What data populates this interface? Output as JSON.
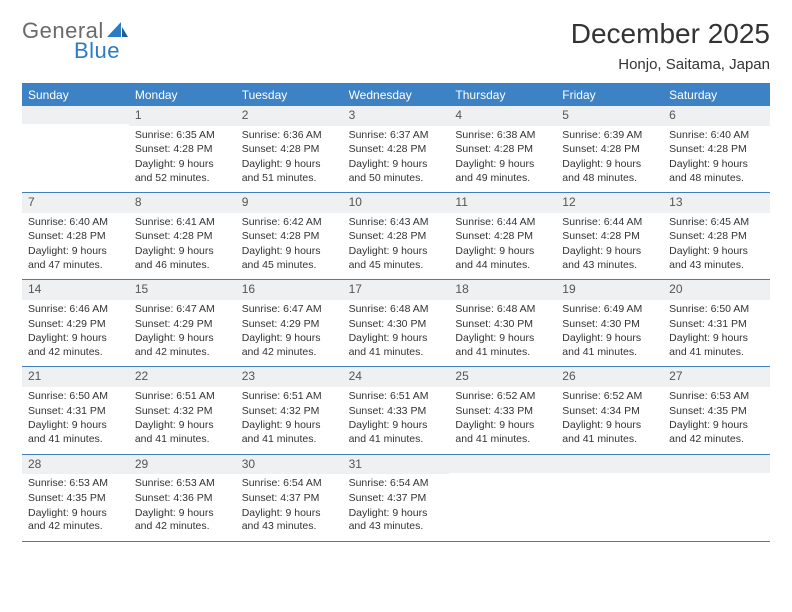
{
  "logo": {
    "text1": "General",
    "text2": "Blue"
  },
  "title": "December 2025",
  "subtitle": "Honjo, Saitama, Japan",
  "colors": {
    "header_bg": "#3d82c4",
    "header_text": "#ffffff",
    "rule": "#407fb7",
    "daynum_bg": "#eef0f1",
    "body_text": "#333333",
    "logo_gray": "#6a6a6a",
    "logo_blue": "#2a7dc2"
  },
  "day_names": [
    "Sunday",
    "Monday",
    "Tuesday",
    "Wednesday",
    "Thursday",
    "Friday",
    "Saturday"
  ],
  "weeks": [
    [
      {
        "day": "",
        "sunrise": "",
        "sunset": "",
        "daylight": ""
      },
      {
        "day": "1",
        "sunrise": "Sunrise: 6:35 AM",
        "sunset": "Sunset: 4:28 PM",
        "daylight": "Daylight: 9 hours and 52 minutes."
      },
      {
        "day": "2",
        "sunrise": "Sunrise: 6:36 AM",
        "sunset": "Sunset: 4:28 PM",
        "daylight": "Daylight: 9 hours and 51 minutes."
      },
      {
        "day": "3",
        "sunrise": "Sunrise: 6:37 AM",
        "sunset": "Sunset: 4:28 PM",
        "daylight": "Daylight: 9 hours and 50 minutes."
      },
      {
        "day": "4",
        "sunrise": "Sunrise: 6:38 AM",
        "sunset": "Sunset: 4:28 PM",
        "daylight": "Daylight: 9 hours and 49 minutes."
      },
      {
        "day": "5",
        "sunrise": "Sunrise: 6:39 AM",
        "sunset": "Sunset: 4:28 PM",
        "daylight": "Daylight: 9 hours and 48 minutes."
      },
      {
        "day": "6",
        "sunrise": "Sunrise: 6:40 AM",
        "sunset": "Sunset: 4:28 PM",
        "daylight": "Daylight: 9 hours and 48 minutes."
      }
    ],
    [
      {
        "day": "7",
        "sunrise": "Sunrise: 6:40 AM",
        "sunset": "Sunset: 4:28 PM",
        "daylight": "Daylight: 9 hours and 47 minutes."
      },
      {
        "day": "8",
        "sunrise": "Sunrise: 6:41 AM",
        "sunset": "Sunset: 4:28 PM",
        "daylight": "Daylight: 9 hours and 46 minutes."
      },
      {
        "day": "9",
        "sunrise": "Sunrise: 6:42 AM",
        "sunset": "Sunset: 4:28 PM",
        "daylight": "Daylight: 9 hours and 45 minutes."
      },
      {
        "day": "10",
        "sunrise": "Sunrise: 6:43 AM",
        "sunset": "Sunset: 4:28 PM",
        "daylight": "Daylight: 9 hours and 45 minutes."
      },
      {
        "day": "11",
        "sunrise": "Sunrise: 6:44 AM",
        "sunset": "Sunset: 4:28 PM",
        "daylight": "Daylight: 9 hours and 44 minutes."
      },
      {
        "day": "12",
        "sunrise": "Sunrise: 6:44 AM",
        "sunset": "Sunset: 4:28 PM",
        "daylight": "Daylight: 9 hours and 43 minutes."
      },
      {
        "day": "13",
        "sunrise": "Sunrise: 6:45 AM",
        "sunset": "Sunset: 4:28 PM",
        "daylight": "Daylight: 9 hours and 43 minutes."
      }
    ],
    [
      {
        "day": "14",
        "sunrise": "Sunrise: 6:46 AM",
        "sunset": "Sunset: 4:29 PM",
        "daylight": "Daylight: 9 hours and 42 minutes."
      },
      {
        "day": "15",
        "sunrise": "Sunrise: 6:47 AM",
        "sunset": "Sunset: 4:29 PM",
        "daylight": "Daylight: 9 hours and 42 minutes."
      },
      {
        "day": "16",
        "sunrise": "Sunrise: 6:47 AM",
        "sunset": "Sunset: 4:29 PM",
        "daylight": "Daylight: 9 hours and 42 minutes."
      },
      {
        "day": "17",
        "sunrise": "Sunrise: 6:48 AM",
        "sunset": "Sunset: 4:30 PM",
        "daylight": "Daylight: 9 hours and 41 minutes."
      },
      {
        "day": "18",
        "sunrise": "Sunrise: 6:48 AM",
        "sunset": "Sunset: 4:30 PM",
        "daylight": "Daylight: 9 hours and 41 minutes."
      },
      {
        "day": "19",
        "sunrise": "Sunrise: 6:49 AM",
        "sunset": "Sunset: 4:30 PM",
        "daylight": "Daylight: 9 hours and 41 minutes."
      },
      {
        "day": "20",
        "sunrise": "Sunrise: 6:50 AM",
        "sunset": "Sunset: 4:31 PM",
        "daylight": "Daylight: 9 hours and 41 minutes."
      }
    ],
    [
      {
        "day": "21",
        "sunrise": "Sunrise: 6:50 AM",
        "sunset": "Sunset: 4:31 PM",
        "daylight": "Daylight: 9 hours and 41 minutes."
      },
      {
        "day": "22",
        "sunrise": "Sunrise: 6:51 AM",
        "sunset": "Sunset: 4:32 PM",
        "daylight": "Daylight: 9 hours and 41 minutes."
      },
      {
        "day": "23",
        "sunrise": "Sunrise: 6:51 AM",
        "sunset": "Sunset: 4:32 PM",
        "daylight": "Daylight: 9 hours and 41 minutes."
      },
      {
        "day": "24",
        "sunrise": "Sunrise: 6:51 AM",
        "sunset": "Sunset: 4:33 PM",
        "daylight": "Daylight: 9 hours and 41 minutes."
      },
      {
        "day": "25",
        "sunrise": "Sunrise: 6:52 AM",
        "sunset": "Sunset: 4:33 PM",
        "daylight": "Daylight: 9 hours and 41 minutes."
      },
      {
        "day": "26",
        "sunrise": "Sunrise: 6:52 AM",
        "sunset": "Sunset: 4:34 PM",
        "daylight": "Daylight: 9 hours and 41 minutes."
      },
      {
        "day": "27",
        "sunrise": "Sunrise: 6:53 AM",
        "sunset": "Sunset: 4:35 PM",
        "daylight": "Daylight: 9 hours and 42 minutes."
      }
    ],
    [
      {
        "day": "28",
        "sunrise": "Sunrise: 6:53 AM",
        "sunset": "Sunset: 4:35 PM",
        "daylight": "Daylight: 9 hours and 42 minutes."
      },
      {
        "day": "29",
        "sunrise": "Sunrise: 6:53 AM",
        "sunset": "Sunset: 4:36 PM",
        "daylight": "Daylight: 9 hours and 42 minutes."
      },
      {
        "day": "30",
        "sunrise": "Sunrise: 6:54 AM",
        "sunset": "Sunset: 4:37 PM",
        "daylight": "Daylight: 9 hours and 43 minutes."
      },
      {
        "day": "31",
        "sunrise": "Sunrise: 6:54 AM",
        "sunset": "Sunset: 4:37 PM",
        "daylight": "Daylight: 9 hours and 43 minutes."
      },
      {
        "day": "",
        "sunrise": "",
        "sunset": "",
        "daylight": ""
      },
      {
        "day": "",
        "sunrise": "",
        "sunset": "",
        "daylight": ""
      },
      {
        "day": "",
        "sunrise": "",
        "sunset": "",
        "daylight": ""
      }
    ]
  ]
}
